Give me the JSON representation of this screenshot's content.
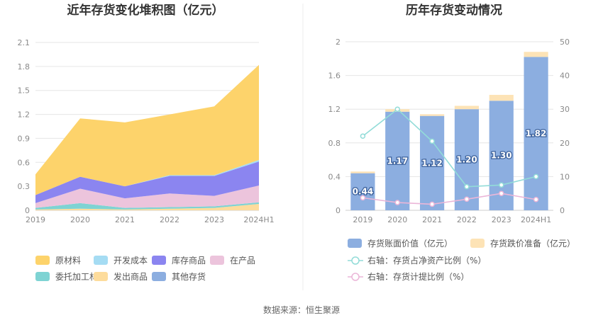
{
  "source_label": "数据来源：恒生聚源",
  "chart_data": [
    {
      "type": "area",
      "title": "近年存货变化堆积图（亿元）",
      "categories": [
        "2019",
        "2020",
        "2021",
        "2022",
        "2023",
        "2024H1"
      ],
      "ylim": [
        0,
        2.1
      ],
      "yticks": [
        "0",
        "0.3",
        "0.6",
        "0.9",
        "1.2",
        "1.5",
        "1.8",
        "2.1"
      ],
      "stacked": true,
      "legend_position": "bottom",
      "series": [
        {
          "name": "发出商品",
          "color": "#fddc9c",
          "values": [
            0.01,
            0.02,
            0.01,
            0.02,
            0.03,
            0.08
          ]
        },
        {
          "name": "委托加工材料",
          "color": "#7ed3d3",
          "values": [
            0.02,
            0.07,
            0.02,
            0.02,
            0.02,
            0.02
          ]
        },
        {
          "name": "在产品",
          "color": "#ecc4dc",
          "values": [
            0.06,
            0.18,
            0.12,
            0.17,
            0.13,
            0.21
          ]
        },
        {
          "name": "库存商品",
          "color": "#8b85f0",
          "values": [
            0.1,
            0.15,
            0.15,
            0.22,
            0.25,
            0.3
          ]
        },
        {
          "name": "开发成本",
          "color": "#a5dcf3",
          "values": [
            0.0,
            0.0,
            0.0,
            0.01,
            0.01,
            0.02
          ]
        },
        {
          "name": "原材料",
          "color": "#fdd36b",
          "values": [
            0.26,
            0.73,
            0.8,
            0.76,
            0.86,
            1.19
          ]
        },
        {
          "name": "其他存货",
          "color": "#8caee0",
          "values": [
            0,
            0,
            0,
            0,
            0,
            0
          ]
        }
      ],
      "legend_order": [
        "原材料",
        "开发成本",
        "库存商品",
        "在产品",
        "委托加工材料",
        "发出商品",
        "其他存货"
      ]
    },
    {
      "type": "bar",
      "title": "历年存货变动情况",
      "categories": [
        "2019",
        "2020",
        "2021",
        "2022",
        "2023",
        "2024H1"
      ],
      "ylim": [
        0,
        2
      ],
      "yticks": [
        "0",
        "0.4",
        "0.8",
        "1.2",
        "1.6",
        "2"
      ],
      "y2lim": [
        0,
        50
      ],
      "y2ticks": [
        "0",
        "10",
        "20",
        "30",
        "40",
        "50"
      ],
      "legend_position": "bottom",
      "bars": [
        {
          "name": "存货账面价值（亿元）",
          "color": "#8caee0",
          "values": [
            0.44,
            1.17,
            1.12,
            1.2,
            1.3,
            1.82
          ],
          "labels": [
            "0.44",
            "1.17",
            "1.12",
            "1.20",
            "1.30",
            "1.82"
          ]
        },
        {
          "name": "存货跌价准备（亿元）",
          "color": "#fde3b6",
          "values": [
            0.02,
            0.03,
            0.02,
            0.04,
            0.07,
            0.06
          ]
        }
      ],
      "lines": [
        {
          "name": "右轴：存货占净资产比例（%）",
          "color": "#92dcd8",
          "values": [
            22,
            30,
            20.5,
            7,
            7.5,
            10
          ]
        },
        {
          "name": "右轴：存货计提比例（%）",
          "color": "#ebb6d8",
          "values": [
            3.7,
            2.3,
            1.8,
            3.3,
            5,
            3.2
          ]
        }
      ]
    }
  ]
}
